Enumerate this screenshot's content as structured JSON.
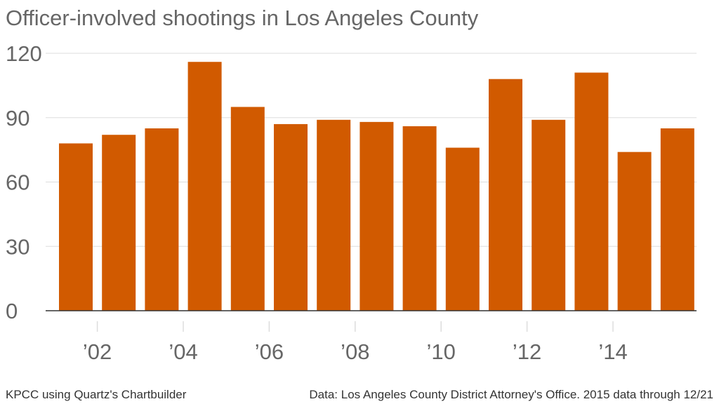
{
  "title": "Officer-involved shootings in Los Angeles County",
  "footer": {
    "credit": "KPCC using Quartz's Chartbuilder",
    "source": "Data: Los Angeles County District Attorney's Office. 2015 data through 12/21"
  },
  "colors": {
    "bar": "#d15a00",
    "grid": "#dddddd",
    "axis": "#333333",
    "text": "#666666"
  },
  "chart_data": {
    "type": "bar",
    "title": "Officer-involved shootings in Los Angeles County",
    "categories": [
      "2001",
      "2002",
      "2003",
      "2004",
      "2005",
      "2006",
      "2007",
      "2008",
      "2009",
      "2010",
      "2011",
      "2012",
      "2013",
      "2014",
      "2015"
    ],
    "values": [
      78,
      82,
      85,
      116,
      95,
      87,
      89,
      88,
      86,
      76,
      108,
      89,
      111,
      74,
      85
    ],
    "ylim": [
      0,
      120
    ],
    "yticks": [
      "0",
      "30",
      "60",
      "90",
      "120"
    ],
    "xtick_labels": [
      {
        "year": "2002",
        "label": "’02"
      },
      {
        "year": "2004",
        "label": "’04"
      },
      {
        "year": "2006",
        "label": "’06"
      },
      {
        "year": "2008",
        "label": "’08"
      },
      {
        "year": "2010",
        "label": "’10"
      },
      {
        "year": "2012",
        "label": "’12"
      },
      {
        "year": "2014",
        "label": "’14"
      }
    ],
    "grid": true,
    "xlabel": "",
    "ylabel": ""
  }
}
